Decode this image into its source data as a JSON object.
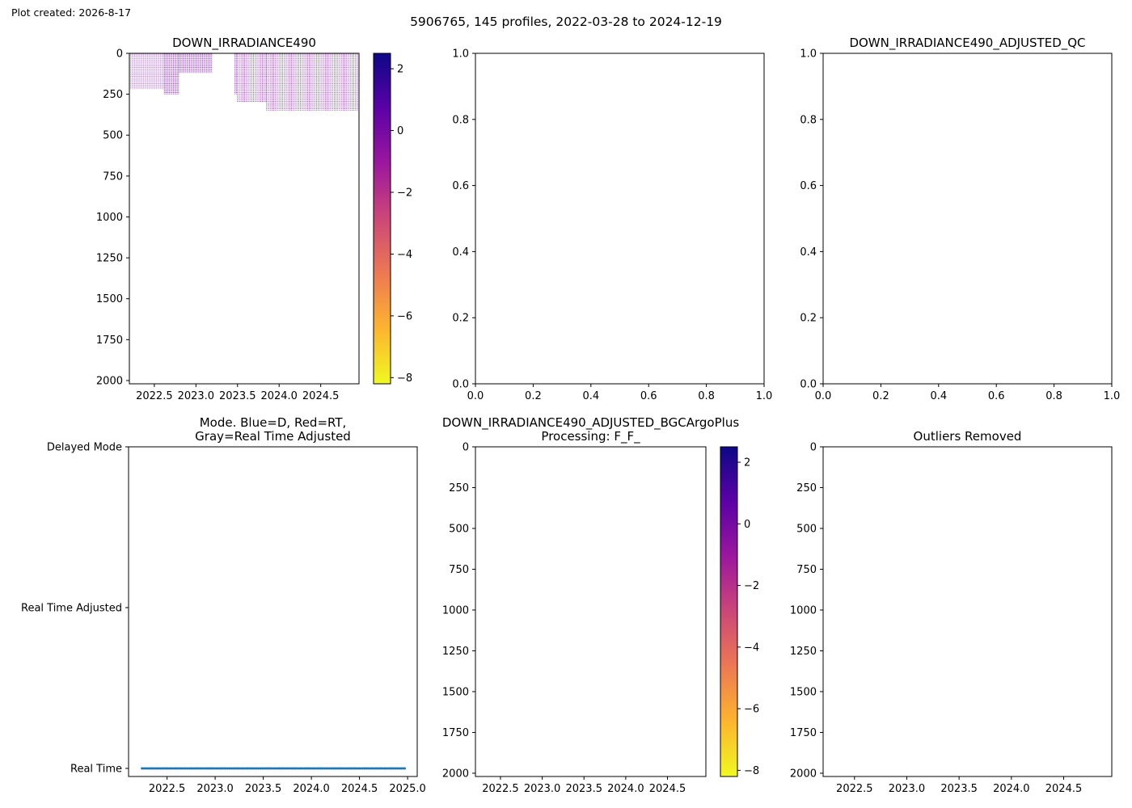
{
  "figure": {
    "created_label": "Plot created: 2026-8-17",
    "suptitle": "5906765, 145 profiles, 2022-03-28 to 2024-12-19",
    "colors": {
      "mode_points": "#1f77b4",
      "data_cells": "#7a0fa6",
      "colormap": [
        "#f0f921",
        "#fdb42f",
        "#ed7953",
        "#cc4778",
        "#9c179e",
        "#5c01a6",
        "#0d0887"
      ]
    }
  },
  "chart_data": [
    {
      "id": "raw",
      "type": "heatmap",
      "title": "DOWN_IRRADIANCE490",
      "xticks": [
        2022.5,
        2023.0,
        2023.5,
        2024.0,
        2024.5
      ],
      "xlim": [
        2022.2,
        2024.96
      ],
      "yticks": [
        0,
        250,
        500,
        750,
        1000,
        1250,
        1500,
        1750,
        2000
      ],
      "ylim": [
        2020,
        0
      ],
      "colorbar": {
        "ticks": [
          2,
          0,
          -2,
          -4,
          -6,
          -8
        ],
        "range": [
          -8.2,
          2.5
        ],
        "colormap": "plasma"
      },
      "coverage": [
        {
          "x_start": 2022.2,
          "x_end": 2022.62,
          "max_depth": 220
        },
        {
          "x_start": 2022.62,
          "x_end": 2022.8,
          "max_depth": 250
        },
        {
          "x_start": 2022.8,
          "x_end": 2023.2,
          "max_depth": 120
        },
        {
          "x_start": 2023.47,
          "x_end": 2023.5,
          "max_depth": 250
        },
        {
          "x_start": 2023.5,
          "x_end": 2023.85,
          "max_depth": 300
        },
        {
          "x_start": 2023.85,
          "x_end": 2024.96,
          "max_depth": 350
        }
      ]
    },
    {
      "id": "adjusted_empty",
      "type": "scatter",
      "title": "",
      "xticks": [
        0.0,
        0.2,
        0.4,
        0.6,
        0.8,
        1.0
      ],
      "yticks": [
        0.0,
        0.2,
        0.4,
        0.6,
        0.8,
        1.0
      ],
      "xlim": [
        0,
        1
      ],
      "ylim": [
        0,
        1
      ],
      "series": []
    },
    {
      "id": "adjusted_qc",
      "type": "scatter",
      "title": "DOWN_IRRADIANCE490_ADJUSTED_QC",
      "xticks": [
        0.0,
        0.2,
        0.4,
        0.6,
        0.8,
        1.0
      ],
      "yticks": [
        0.0,
        0.2,
        0.4,
        0.6,
        0.8,
        1.0
      ],
      "xlim": [
        0,
        1
      ],
      "ylim": [
        0,
        1
      ],
      "series": []
    },
    {
      "id": "mode",
      "type": "scatter",
      "title": "Mode. Blue=D, Red=RT,\nGray=Real Time Adjusted",
      "xticks": [
        2022.5,
        2023.0,
        2023.5,
        2024.0,
        2024.5,
        2025.0
      ],
      "xlim": [
        2022.1,
        2025.1
      ],
      "ycategories": [
        "Delayed Mode",
        "Real Time Adjusted",
        "Real Time"
      ],
      "series": [
        {
          "category": "Real Time",
          "profiles": 145,
          "x_start": 2022.24,
          "x_end": 2024.97
        }
      ]
    },
    {
      "id": "bgcargoplus",
      "type": "heatmap",
      "title": "DOWN_IRRADIANCE490_ADJUSTED_BGCArgoPlus\nProcessing: F_F_",
      "xticks": [
        2022.5,
        2023.0,
        2023.5,
        2024.0,
        2024.5
      ],
      "xlim": [
        2022.2,
        2024.96
      ],
      "yticks": [
        0,
        250,
        500,
        750,
        1000,
        1250,
        1500,
        1750,
        2000
      ],
      "ylim": [
        2020,
        0
      ],
      "colorbar": {
        "ticks": [
          2,
          0,
          -2,
          -4,
          -6,
          -8
        ],
        "range": [
          -8.2,
          2.5
        ],
        "colormap": "plasma"
      },
      "coverage": []
    },
    {
      "id": "outliers",
      "type": "heatmap",
      "title": "Outliers Removed",
      "xticks": [
        2022.5,
        2023.0,
        2023.5,
        2024.0,
        2024.5
      ],
      "xlim": [
        2022.2,
        2024.96
      ],
      "yticks": [
        0,
        250,
        500,
        750,
        1000,
        1250,
        1500,
        1750,
        2000
      ],
      "ylim": [
        2020,
        0
      ],
      "coverage": []
    }
  ]
}
